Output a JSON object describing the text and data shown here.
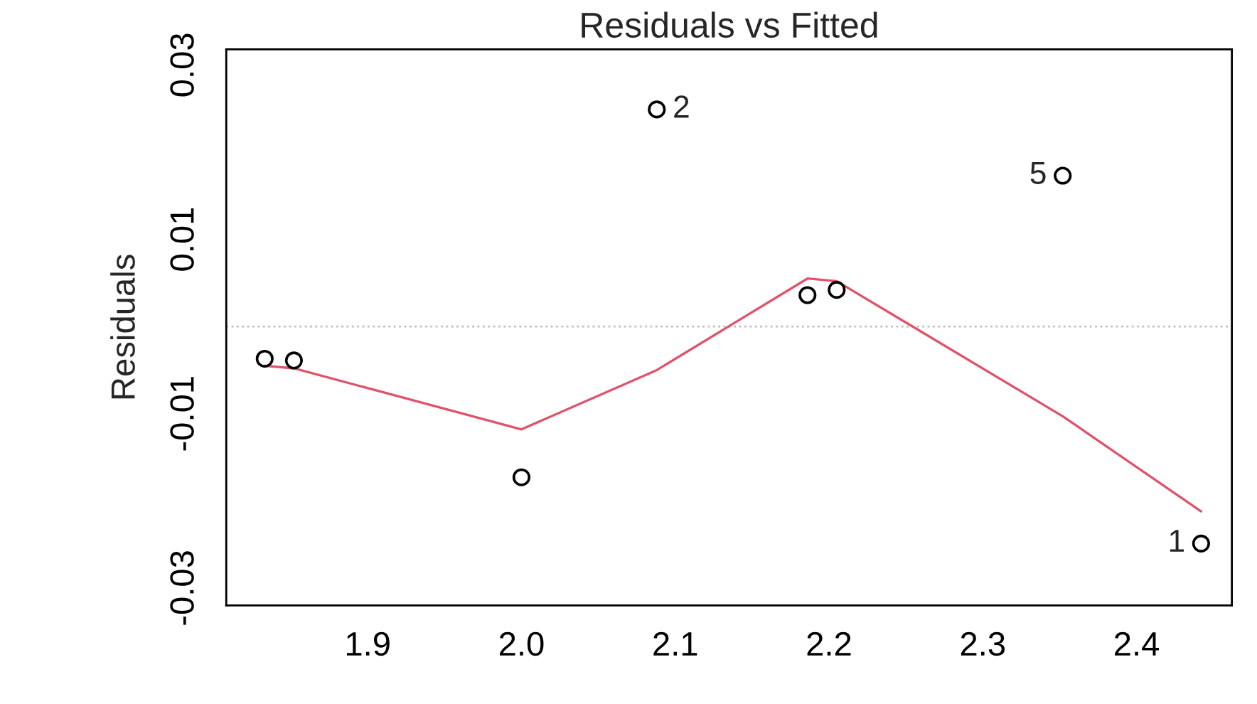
{
  "chart_data": {
    "type": "scatter",
    "title": "Residuals vs Fitted",
    "ylabel": "Residuals",
    "series": [
      {
        "type": "scatter",
        "color": "#000000",
        "marker": "circle",
        "x": [
          1.833,
          1.852,
          2.0,
          2.088,
          2.186,
          2.205,
          2.352,
          2.442
        ],
        "values": [
          -0.0037,
          -0.0039,
          -0.0173,
          0.0249,
          0.0036,
          0.0042,
          0.0173,
          -0.0249
        ]
      },
      {
        "type": "line",
        "color": "#df536b",
        "x": [
          1.833,
          1.852,
          2.0,
          2.088,
          2.186,
          2.205,
          2.352,
          2.442
        ],
        "values": [
          -0.0045,
          -0.0048,
          -0.0118,
          -0.005,
          0.0055,
          0.0052,
          -0.0103,
          -0.0212
        ]
      }
    ],
    "annotations": [
      {
        "text": "2",
        "x": 2.088,
        "y": 0.0249
      },
      {
        "text": "5",
        "x": 2.352,
        "y": 0.0173
      },
      {
        "text": "1",
        "x": 2.442,
        "y": -0.0249
      }
    ],
    "ref_lines": [
      {
        "axis": "y",
        "value": 0,
        "color": "#bebebe",
        "line_style": "dotted"
      }
    ],
    "xlim": [
      1.808,
      2.462
    ],
    "ylim": [
      -0.032,
      0.0318
    ],
    "xticks": [
      1.9,
      {
        "value": 2,
        "label": "2.0"
      },
      2.1,
      2.2,
      2.3,
      2.4
    ],
    "yticks": [
      0.03,
      0.01,
      -0.01,
      -0.03
    ],
    "grid": false,
    "legend": false
  }
}
